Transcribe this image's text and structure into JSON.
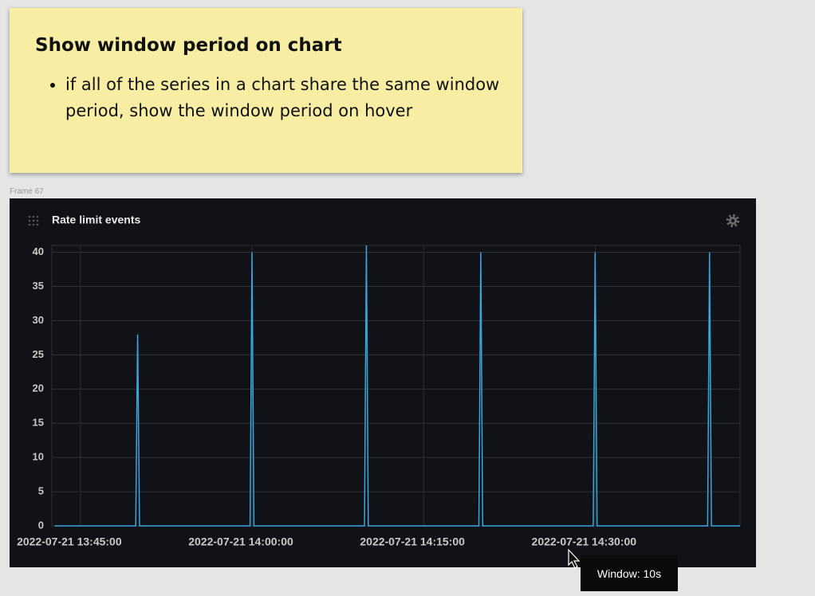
{
  "note": {
    "title": "Show window period on chart",
    "bullet": "if all of the series in a chart share the same window period, show the window period on hover"
  },
  "frame_label": "Frame 67",
  "chart_data": {
    "type": "line",
    "title": "Rate limit events",
    "x": [
      "2022-07-21 13:42:45",
      "2022-07-21 13:49:50",
      "2022-07-21 13:50:00",
      "2022-07-21 13:50:10",
      "2022-07-21 13:59:50",
      "2022-07-21 14:00:00",
      "2022-07-21 14:00:10",
      "2022-07-21 14:09:50",
      "2022-07-21 14:10:00",
      "2022-07-21 14:10:10",
      "2022-07-21 14:19:50",
      "2022-07-21 14:20:00",
      "2022-07-21 14:20:10",
      "2022-07-21 14:29:50",
      "2022-07-21 14:30:00",
      "2022-07-21 14:30:10",
      "2022-07-21 14:39:50",
      "2022-07-21 14:40:00",
      "2022-07-21 14:40:10",
      "2022-07-21 14:42:40"
    ],
    "series": [
      {
        "name": "Rate limit events",
        "color": "#3aa6e0",
        "values": [
          0,
          0,
          28,
          0,
          0,
          40,
          0,
          0,
          41,
          0,
          0,
          40,
          0,
          0,
          40,
          0,
          0,
          40,
          0,
          0
        ]
      }
    ],
    "xlim": [
      "2022-07-21 13:42:30",
      "2022-07-21 14:42:40"
    ],
    "xticks": [
      "2022-07-21 13:45:00",
      "2022-07-21 14:00:00",
      "2022-07-21 14:15:00",
      "2022-07-21 14:30:00"
    ],
    "ylim": [
      0,
      41
    ],
    "yticks": [
      0,
      5,
      10,
      15,
      20,
      25,
      30,
      35,
      40
    ],
    "grid": true
  },
  "tooltip": "Window: 10s"
}
